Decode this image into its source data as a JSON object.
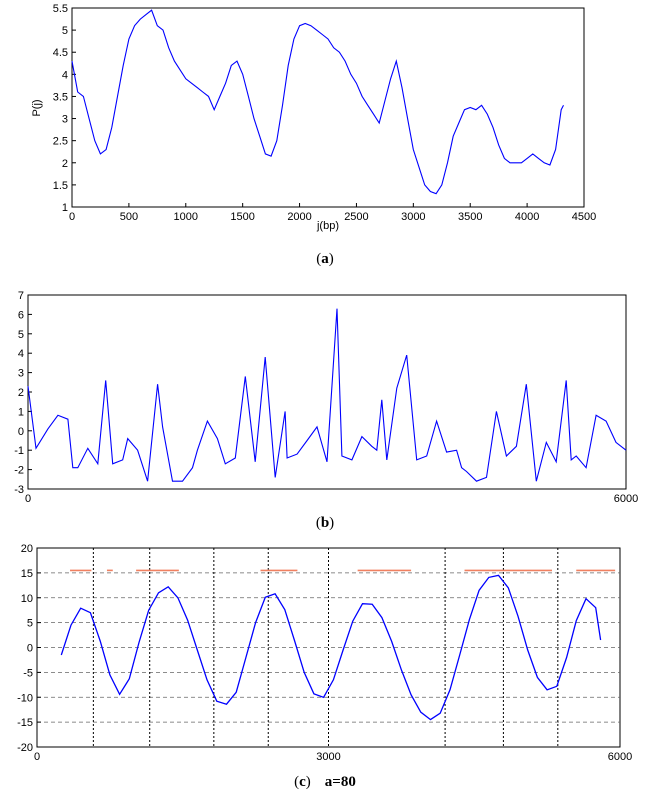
{
  "captions": {
    "a": {
      "open": "(",
      "letter": "a",
      "close": ")"
    },
    "b": {
      "open": "(",
      "letter": "b",
      "close": ")"
    },
    "c": {
      "open": "(",
      "letter": "c",
      "close": ")",
      "extra": "a=80"
    }
  },
  "chart_data": [
    {
      "type": "line",
      "panel": "a",
      "xlabel": "j(bp)",
      "ylabel": "P(j)",
      "xlim": [
        0,
        4500
      ],
      "ylim": [
        1,
        5.5
      ],
      "xticks": [
        0,
        500,
        1000,
        1500,
        2000,
        2500,
        3000,
        3500,
        4000,
        4500
      ],
      "yticks": [
        1,
        1.5,
        2,
        2.5,
        3,
        3.5,
        4,
        4.5,
        5,
        5.5
      ],
      "grid": false,
      "line_color": "#0000ff",
      "series": [
        {
          "x": [
            0,
            50,
            100,
            150,
            200,
            250,
            300,
            350,
            400,
            450,
            500,
            550,
            600,
            650,
            700,
            750,
            800,
            850,
            900,
            950,
            1000,
            1050,
            1100,
            1150,
            1200,
            1250,
            1300,
            1350,
            1400,
            1450,
            1500,
            1550,
            1600,
            1650,
            1700,
            1750,
            1800,
            1850,
            1900,
            1950,
            2000,
            2050,
            2100,
            2150,
            2200,
            2250,
            2300,
            2350,
            2400,
            2450,
            2500,
            2550,
            2600,
            2650,
            2700,
            2750,
            2800,
            2850,
            2900,
            2950,
            3000,
            3050,
            3100,
            3150,
            3200,
            3250,
            3300,
            3350,
            3400,
            3450,
            3500,
            3550,
            3600,
            3650,
            3700,
            3750,
            3800,
            3850,
            3900,
            3950,
            4000,
            4050,
            4100,
            4150,
            4200,
            4250,
            4300,
            4320
          ],
          "values": [
            4.3,
            3.6,
            3.5,
            3.0,
            2.5,
            2.2,
            2.3,
            2.8,
            3.5,
            4.2,
            4.8,
            5.1,
            5.25,
            5.35,
            5.45,
            5.1,
            5.0,
            4.6,
            4.3,
            4.1,
            3.9,
            3.8,
            3.7,
            3.6,
            3.5,
            3.2,
            3.5,
            3.8,
            4.2,
            4.3,
            4.0,
            3.5,
            3.0,
            2.6,
            2.2,
            2.15,
            2.5,
            3.3,
            4.2,
            4.8,
            5.1,
            5.15,
            5.1,
            5.0,
            4.9,
            4.8,
            4.6,
            4.5,
            4.3,
            4.0,
            3.8,
            3.5,
            3.3,
            3.1,
            2.9,
            3.4,
            3.9,
            4.3,
            3.7,
            3.0,
            2.3,
            1.9,
            1.5,
            1.35,
            1.3,
            1.5,
            2.0,
            2.6,
            2.9,
            3.2,
            3.25,
            3.2,
            3.3,
            3.1,
            2.8,
            2.4,
            2.1,
            2.0,
            2.0,
            2.0,
            2.1,
            2.2,
            2.1,
            2.0,
            1.95,
            2.3,
            3.2,
            3.3
          ]
        }
      ]
    },
    {
      "type": "line",
      "panel": "b",
      "xlim": [
        0,
        6000
      ],
      "ylim": [
        -3,
        7
      ],
      "xticks": [
        0,
        6000
      ],
      "yticks": [
        -3,
        -2,
        -1,
        0,
        1,
        2,
        3,
        4,
        5,
        6,
        7
      ],
      "grid": false,
      "line_color": "#0000ff",
      "series": [
        {
          "x": [
            0,
            80,
            200,
            300,
            400,
            450,
            500,
            600,
            700,
            780,
            850,
            950,
            1000,
            1100,
            1200,
            1300,
            1350,
            1450,
            1550,
            1650,
            1700,
            1800,
            1900,
            1980,
            2080,
            2180,
            2280,
            2380,
            2480,
            2580,
            2600,
            2700,
            2800,
            2900,
            3000,
            3100,
            3150,
            3250,
            3350,
            3450,
            3500,
            3550,
            3600,
            3700,
            3800,
            3900,
            4000,
            4100,
            4200,
            4300,
            4350,
            4400,
            4500,
            4600,
            4700,
            4800,
            4900,
            5000,
            5100,
            5200,
            5300,
            5400,
            5450,
            5500,
            5600,
            5700,
            5800,
            5900,
            6000
          ],
          "values": [
            2.3,
            -0.9,
            0.1,
            0.8,
            0.6,
            -1.9,
            -1.9,
            -0.9,
            -1.7,
            2.6,
            -1.7,
            -1.5,
            -0.4,
            -1.0,
            -2.6,
            2.4,
            0.2,
            -2.6,
            -2.6,
            -1.9,
            -1.0,
            0.5,
            -0.4,
            -1.7,
            -1.4,
            2.8,
            -1.6,
            3.8,
            -2.4,
            1.0,
            -1.4,
            -1.2,
            -0.5,
            0.2,
            -1.6,
            6.3,
            -1.3,
            -1.5,
            -0.3,
            -0.8,
            -1.0,
            1.6,
            -1.5,
            2.2,
            3.9,
            -1.5,
            -1.3,
            0.5,
            -1.1,
            -1.0,
            -1.9,
            -2.1,
            -2.6,
            -2.4,
            1.0,
            -1.3,
            -0.8,
            2.4,
            -2.6,
            -0.6,
            -1.6,
            2.6,
            -1.5,
            -1.3,
            -1.9,
            0.8,
            0.5,
            -0.6,
            -1.0
          ]
        }
      ]
    },
    {
      "type": "line",
      "panel": "c",
      "xlim": [
        0,
        6000
      ],
      "ylim": [
        -20,
        20
      ],
      "xticks": [
        0,
        3000,
        6000
      ],
      "yticks": [
        -20,
        -15,
        -10,
        -5,
        0,
        5,
        10,
        15,
        20
      ],
      "grid": true,
      "line_color": "#0000ff",
      "series": [
        {
          "x": [
            250,
            350,
            450,
            550,
            650,
            750,
            850,
            950,
            1050,
            1150,
            1250,
            1350,
            1450,
            1550,
            1650,
            1750,
            1850,
            1950,
            2050,
            2150,
            2250,
            2350,
            2450,
            2550,
            2650,
            2750,
            2850,
            2950,
            3050,
            3150,
            3250,
            3350,
            3450,
            3550,
            3650,
            3750,
            3850,
            3950,
            4050,
            4150,
            4250,
            4350,
            4450,
            4550,
            4650,
            4750,
            4850,
            4950,
            5050,
            5150,
            5250,
            5350,
            5450,
            5550,
            5650,
            5750,
            5800
          ],
          "values": [
            -1.5,
            4.5,
            7.9,
            7.0,
            1.3,
            -5.5,
            -9.4,
            -6.3,
            1.0,
            7.5,
            11.0,
            12.2,
            10.0,
            5.5,
            -0.5,
            -6.5,
            -10.8,
            -11.4,
            -9.0,
            -2.0,
            5.0,
            10.1,
            10.8,
            7.6,
            1.4,
            -5.0,
            -9.3,
            -10.0,
            -6.5,
            -0.5,
            5.3,
            8.8,
            8.7,
            6.0,
            1.2,
            -4.5,
            -9.5,
            -13.0,
            -14.5,
            -13.2,
            -8.5,
            -1.5,
            5.6,
            11.5,
            14.1,
            14.5,
            12.0,
            6.3,
            -0.5,
            -6.0,
            -8.5,
            -7.8,
            -2.0,
            5.4,
            9.8,
            8.0,
            1.5
          ]
        }
      ],
      "vlines": [
        580,
        1160,
        1820,
        2380,
        3000,
        4200,
        4800,
        5360
      ],
      "hline_y": 15.5,
      "marker_segments": [
        [
          340,
          560
        ],
        [
          720,
          780
        ],
        [
          1020,
          1460
        ],
        [
          2300,
          2680
        ],
        [
          3300,
          3850
        ],
        [
          4400,
          5300
        ],
        [
          5550,
          5950
        ]
      ],
      "marker_color": "#f08060"
    }
  ]
}
